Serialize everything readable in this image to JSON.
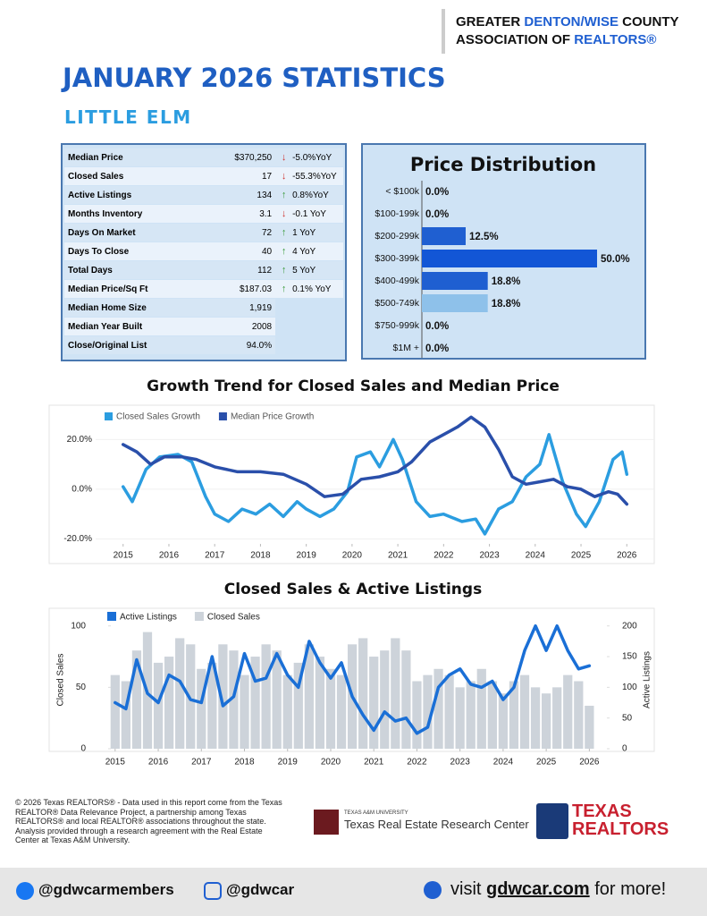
{
  "header": {
    "line1": [
      "GREATER",
      "DENTON/WISE",
      "COUNTY"
    ],
    "line2": [
      "ASSOCIATION OF",
      "REALTORS®"
    ]
  },
  "title": "JANUARY 2026 STATISTICS",
  "subtitle": "LITTLE ELM",
  "stats": {
    "rows": [
      {
        "label": "Median Price",
        "value": "$370,250",
        "trend": "down",
        "yoy": "-5.0%YoY"
      },
      {
        "label": "Closed Sales",
        "value": "17",
        "trend": "down",
        "yoy": "-55.3%YoY"
      },
      {
        "label": "Active Listings",
        "value": "134",
        "trend": "up",
        "yoy": "0.8%YoY"
      },
      {
        "label": "Months Inventory",
        "value": "3.1",
        "trend": "down",
        "yoy": "-0.1 YoY"
      },
      {
        "label": "Days On Market",
        "value": "72",
        "trend": "up",
        "yoy": "1 YoY"
      },
      {
        "label": "Days To Close",
        "value": "40",
        "trend": "up",
        "yoy": "4 YoY"
      },
      {
        "label": "Total Days",
        "value": "112",
        "trend": "up",
        "yoy": "5 YoY"
      },
      {
        "label": "Median Price/Sq Ft",
        "value": "$187.03",
        "trend": "up",
        "yoy": "0.1% YoY"
      },
      {
        "label": "Median Home Size",
        "value": "1,919"
      },
      {
        "label": "Median Year Built",
        "value": "2008"
      },
      {
        "label": "Close/Original List",
        "value": "94.0%"
      }
    ]
  },
  "chart_data": [
    {
      "type": "bar",
      "title": "Price Distribution",
      "categories": [
        "< $100k",
        "$100-199k",
        "$200-299k",
        "$300-399k",
        "$400-499k",
        "$500-749k",
        "$750-999k",
        "$1M +"
      ],
      "values": [
        0,
        0,
        12.5,
        50,
        18.8,
        18.8,
        0,
        0
      ],
      "value_labels": [
        "0.0%",
        "0.0%",
        "12.5%",
        "50.0%",
        "18.8%",
        "18.8%",
        "0.0%",
        "0.0%"
      ],
      "colors": [
        "#1f5fd1",
        "#1f5fd1",
        "#1f5fd1",
        "#1256d6",
        "#1f5fd1",
        "#8ec1ea",
        "#1f5fd1",
        "#1f5fd1"
      ],
      "xlim": [
        0,
        50
      ]
    },
    {
      "type": "line",
      "title": "Growth Trend for Closed Sales and Median Price",
      "xlim": [
        2014.4,
        2026.6
      ],
      "xticks": [
        2015,
        2016,
        2017,
        2018,
        2019,
        2020,
        2021,
        2022,
        2023,
        2024,
        2025,
        2026
      ],
      "ylim": [
        -22,
        32
      ],
      "yticks": [
        {
          "value": -20,
          "label": "-20.0%"
        },
        {
          "value": 0,
          "label": "0.0%"
        },
        {
          "value": 20,
          "label": "20.0%"
        }
      ],
      "grid": true,
      "series": [
        {
          "name": "Closed Sales Growth",
          "color": "#2b9de0",
          "x": [
            2015.0,
            2015.2,
            2015.5,
            2015.8,
            2016.2,
            2016.5,
            2016.8,
            2017.0,
            2017.3,
            2017.6,
            2017.9,
            2018.2,
            2018.5,
            2018.8,
            2019.0,
            2019.3,
            2019.6,
            2019.9,
            2020.1,
            2020.4,
            2020.6,
            2020.9,
            2021.1,
            2021.4,
            2021.7,
            2022.0,
            2022.4,
            2022.7,
            2022.9,
            2023.2,
            2023.5,
            2023.8,
            2024.1,
            2024.3,
            2024.6,
            2024.9,
            2025.1,
            2025.4,
            2025.7,
            2025.9,
            2026.0
          ],
          "values": [
            1,
            -5,
            8,
            13,
            14,
            11,
            -3,
            -10,
            -13,
            -8,
            -10,
            -6,
            -11,
            -5,
            -8,
            -11,
            -8,
            -1,
            13,
            15,
            9,
            20,
            12,
            -5,
            -11,
            -10,
            -13,
            -12,
            -18,
            -8,
            -5,
            5,
            10,
            22,
            3,
            -10,
            -15,
            -5,
            12,
            15,
            6
          ]
        },
        {
          "name": "Median Price Growth",
          "color": "#2a4faa",
          "x": [
            2015.0,
            2015.3,
            2015.6,
            2015.9,
            2016.3,
            2016.6,
            2017.0,
            2017.5,
            2018.0,
            2018.5,
            2019.0,
            2019.4,
            2019.8,
            2020.2,
            2020.6,
            2021.0,
            2021.3,
            2021.7,
            2022.0,
            2022.3,
            2022.6,
            2022.9,
            2023.2,
            2023.5,
            2023.8,
            2024.1,
            2024.4,
            2024.7,
            2025.0,
            2025.3,
            2025.6,
            2025.8,
            2026.0
          ],
          "values": [
            18,
            15,
            10,
            13,
            13,
            12,
            9,
            7,
            7,
            6,
            2,
            -3,
            -2,
            4,
            5,
            7,
            11,
            19,
            22,
            25,
            29,
            25,
            16,
            5,
            2,
            3,
            4,
            1,
            0,
            -3,
            -1,
            -2,
            -6
          ]
        }
      ]
    },
    {
      "type": "combo",
      "title": "Closed Sales & Active Listings",
      "xlim": [
        2014.9,
        2026.2
      ],
      "xticks": [
        2015,
        2016,
        2017,
        2018,
        2019,
        2020,
        2021,
        2022,
        2023,
        2024,
        2025,
        2026
      ],
      "ylabel": "Closed Sales",
      "y2label": "Active Listings",
      "ylim": [
        0,
        110
      ],
      "yticks": [
        0,
        50,
        100
      ],
      "y2lim": [
        0,
        220
      ],
      "y2ticks": [
        0,
        50,
        100,
        150,
        200
      ],
      "x": [
        2015.0,
        2015.25,
        2015.5,
        2015.75,
        2016.0,
        2016.25,
        2016.5,
        2016.75,
        2017.0,
        2017.25,
        2017.5,
        2017.75,
        2018.0,
        2018.25,
        2018.5,
        2018.75,
        2019.0,
        2019.25,
        2019.5,
        2019.75,
        2020.0,
        2020.25,
        2020.5,
        2020.75,
        2021.0,
        2021.25,
        2021.5,
        2021.75,
        2022.0,
        2022.25,
        2022.5,
        2022.75,
        2023.0,
        2023.25,
        2023.5,
        2023.75,
        2024.0,
        2024.25,
        2024.5,
        2024.75,
        2025.0,
        2025.25,
        2025.5,
        2025.75,
        2026.0
      ],
      "series": [
        {
          "name": "Active Listings",
          "color": "#1a6fd6",
          "axis": "y2",
          "type": "line",
          "values": [
            75,
            65,
            145,
            90,
            75,
            120,
            110,
            80,
            75,
            150,
            70,
            85,
            155,
            110,
            115,
            155,
            120,
            100,
            175,
            140,
            115,
            140,
            85,
            55,
            30,
            60,
            45,
            50,
            25,
            35,
            100,
            120,
            130,
            105,
            100,
            110,
            80,
            100,
            160,
            200,
            160,
            200,
            160,
            130,
            135
          ]
        },
        {
          "name": "Closed Sales",
          "color": "#cdd3da",
          "type": "bar",
          "values": [
            60,
            55,
            80,
            95,
            70,
            75,
            90,
            85,
            65,
            70,
            85,
            80,
            60,
            75,
            85,
            80,
            60,
            70,
            85,
            75,
            65,
            60,
            85,
            90,
            75,
            80,
            90,
            80,
            55,
            60,
            65,
            60,
            50,
            55,
            65,
            55,
            45,
            55,
            60,
            50,
            45,
            50,
            60,
            55,
            35
          ]
        }
      ]
    }
  ],
  "footer": {
    "disclaimer": "© 2026 Texas REALTORS® - Data used in this report come from the Texas REALTOR® Data Relevance Project, a partnership among Texas REALTORS® and local REALTOR® associations throughout the state. Analysis provided through a research agreement with the Real Estate Center at Texas A&M University.",
    "tamu": [
      "TEXAS A&M UNIVERSITY",
      "Texas Real Estate Research Center"
    ],
    "tr": [
      "TEXAS",
      "REALTORS"
    ],
    "facebook": "@gdwcarmembers",
    "instagram": "@gdwcar",
    "visit": [
      "visit",
      "gdwcar.com",
      "for more!"
    ]
  }
}
